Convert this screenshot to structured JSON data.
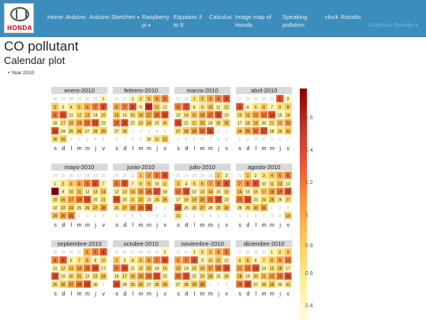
{
  "nav": {
    "logo_text": "HONDA",
    "items": [
      {
        "label": "Home"
      },
      {
        "label": "Arduino"
      },
      {
        "label": "Arduino Sketches",
        "caret": "▾"
      },
      {
        "label": "Raspberry pi",
        "caret": "▾"
      },
      {
        "label": "Equation 3 to 8"
      },
      {
        "label": "Calculus"
      },
      {
        "label": "Image map of Honda"
      },
      {
        "label": "Speaking pollution"
      },
      {
        "label": "clock"
      },
      {
        "label": "Rstudio"
      },
      {
        "label": "Graphics Rstudio",
        "caret": "▾",
        "active": true
      }
    ]
  },
  "page": {
    "title": "CO pollutant",
    "subtitle": "Calendar plot",
    "bullet": "Year 2010"
  },
  "colors": {
    "nav_bg": "#3c8dbc",
    "active": "#5bc0f8",
    "low": "#fefce0",
    "mid": "#f59b42",
    "high": "#8b0000"
  },
  "chart_data": {
    "type": "heatmap",
    "title": "",
    "legend_position": "right",
    "colorbar_ticks": [
      "1.6",
      "1.4",
      "1.2",
      "1",
      "0.8",
      "0.6",
      "0.4"
    ],
    "weekday_labels": [
      "s",
      "d",
      "l",
      "m",
      "m",
      "j",
      "v"
    ],
    "months": [
      {
        "name": "enero-2010",
        "weeks": [
          [
            "26",
            "27",
            "28",
            "29",
            "30",
            "31",
            "1"
          ],
          [
            "2",
            "3",
            "4",
            "5",
            "6",
            "7",
            "8"
          ],
          [
            "9",
            "10",
            "11",
            "12",
            "13",
            "14",
            "15"
          ],
          [
            "16",
            "17",
            "18",
            "19",
            "20",
            "21",
            "22"
          ],
          [
            "23",
            "24",
            "25",
            "26",
            "27",
            "28",
            "29"
          ],
          [
            "30",
            "31",
            "1",
            "2",
            "3",
            "4",
            "5"
          ]
        ]
      },
      {
        "name": "febrero-2010",
        "weeks": [
          [
            "30",
            "31",
            "1",
            "2",
            "3",
            "4",
            "5"
          ],
          [
            "6",
            "7",
            "8",
            "9",
            "10",
            "11",
            "12"
          ],
          [
            "13",
            "14",
            "15",
            "16",
            "17",
            "18",
            "19"
          ],
          [
            "20",
            "21",
            "22",
            "23",
            "24",
            "25",
            "26"
          ],
          [
            "27",
            "28",
            "1",
            "2",
            "3",
            "4",
            "5"
          ],
          [
            "6",
            "7",
            "8",
            "9",
            "10",
            "11",
            "12"
          ]
        ]
      },
      {
        "name": "marzo-2010",
        "weeks": [
          [
            "27",
            "28",
            "1",
            "2",
            "3",
            "4",
            "5"
          ],
          [
            "6",
            "7",
            "8",
            "9",
            "10",
            "11",
            "12"
          ],
          [
            "13",
            "14",
            "15",
            "16",
            "17",
            "18",
            "19"
          ],
          [
            "20",
            "21",
            "22",
            "23",
            "24",
            "25",
            "26"
          ],
          [
            "27",
            "28",
            "29",
            "30",
            "31",
            "1",
            "2"
          ],
          [
            "3",
            "4",
            "5",
            "6",
            "7",
            "8",
            "9"
          ]
        ]
      },
      {
        "name": "abril-2010",
        "weeks": [
          [
            "27",
            "28",
            "29",
            "30",
            "31",
            "1",
            "2"
          ],
          [
            "3",
            "4",
            "5",
            "6",
            "7",
            "8",
            "9"
          ],
          [
            "10",
            "11",
            "12",
            "13",
            "14",
            "15",
            "16"
          ],
          [
            "17",
            "18",
            "19",
            "20",
            "21",
            "22",
            "23"
          ],
          [
            "24",
            "25",
            "26",
            "27",
            "28",
            "29",
            "30"
          ],
          [
            "1",
            "2",
            "3",
            "4",
            "5",
            "6",
            "7"
          ]
        ]
      },
      {
        "name": "mayo-2010",
        "weeks": [
          [
            "24",
            "25",
            "26",
            "27",
            "28",
            "29",
            "30"
          ],
          [
            "1",
            "2",
            "3",
            "4",
            "5",
            "6",
            "7"
          ],
          [
            "8",
            "9",
            "10",
            "11",
            "12",
            "13",
            "14"
          ],
          [
            "15",
            "16",
            "17",
            "18",
            "19",
            "20",
            "21"
          ],
          [
            "22",
            "23",
            "24",
            "25",
            "26",
            "27",
            "28"
          ],
          [
            "29",
            "30",
            "31",
            "1",
            "2",
            "3",
            "4"
          ]
        ]
      },
      {
        "name": "junio-2010",
        "weeks": [
          [
            "29",
            "30",
            "31",
            "1",
            "2",
            "3",
            "4"
          ],
          [
            "5",
            "6",
            "7",
            "8",
            "9",
            "10",
            "11"
          ],
          [
            "12",
            "13",
            "14",
            "15",
            "16",
            "17",
            "18"
          ],
          [
            "19",
            "20",
            "21",
            "22",
            "23",
            "24",
            "25"
          ],
          [
            "26",
            "27",
            "28",
            "29",
            "30",
            "1",
            "2"
          ],
          [
            "3",
            "4",
            "5",
            "6",
            "7",
            "8",
            "9"
          ]
        ]
      },
      {
        "name": "julio-2010",
        "weeks": [
          [
            "26",
            "27",
            "28",
            "29",
            "30",
            "1",
            "2"
          ],
          [
            "3",
            "4",
            "5",
            "6",
            "7",
            "8",
            "9"
          ],
          [
            "10",
            "11",
            "12",
            "13",
            "14",
            "15",
            "16"
          ],
          [
            "17",
            "18",
            "19",
            "20",
            "21",
            "22",
            "23"
          ],
          [
            "24",
            "25",
            "26",
            "27",
            "28",
            "29",
            "30"
          ],
          [
            "31",
            "1",
            "2",
            "3",
            "4",
            "5",
            "6"
          ]
        ]
      },
      {
        "name": "agosto-2010",
        "weeks": [
          [
            "31",
            "1",
            "2",
            "3",
            "4",
            "5",
            "6"
          ],
          [
            "7",
            "8",
            "9",
            "10",
            "11",
            "12",
            "13"
          ],
          [
            "14",
            "15",
            "16",
            "17",
            "18",
            "19",
            "20"
          ],
          [
            "21",
            "22",
            "23",
            "24",
            "25",
            "26",
            "27"
          ],
          [
            "28",
            "29",
            "30",
            "31",
            "1",
            "2",
            "3"
          ],
          [
            "4",
            "5",
            "6",
            "7",
            "8",
            "9",
            "10"
          ]
        ]
      },
      {
        "name": "septiembre-2010",
        "weeks": [
          [
            "28",
            "29",
            "30",
            "31",
            "1",
            "2",
            "3"
          ],
          [
            "4",
            "5",
            "6",
            "7",
            "8",
            "9",
            "10"
          ],
          [
            "11",
            "12",
            "13",
            "14",
            "15",
            "16",
            "17"
          ],
          [
            "18",
            "19",
            "20",
            "21",
            "22",
            "23",
            "24"
          ],
          [
            "25",
            "26",
            "27",
            "28",
            "29",
            "30",
            "1"
          ]
        ]
      },
      {
        "name": "octubre-2010",
        "weeks": [
          [
            "25",
            "26",
            "27",
            "28",
            "29",
            "30",
            "1"
          ],
          [
            "2",
            "3",
            "4",
            "5",
            "6",
            "7",
            "8"
          ],
          [
            "9",
            "10",
            "11",
            "12",
            "13",
            "14",
            "15"
          ],
          [
            "16",
            "17",
            "18",
            "19",
            "20",
            "21",
            "22"
          ],
          [
            "23",
            "24",
            "25",
            "26",
            "27",
            "28",
            "29"
          ]
        ]
      },
      {
        "name": "noviembre-2010",
        "weeks": [
          [
            "30",
            "31",
            "1",
            "2",
            "3",
            "4",
            "5"
          ],
          [
            "6",
            "7",
            "8",
            "9",
            "10",
            "11",
            "12"
          ],
          [
            "13",
            "14",
            "15",
            "16",
            "17",
            "18",
            "19"
          ],
          [
            "20",
            "21",
            "22",
            "23",
            "24",
            "25",
            "26"
          ],
          [
            "27",
            "28",
            "29",
            "30",
            "1",
            "2",
            "3"
          ]
        ]
      },
      {
        "name": "diciembre-2010",
        "weeks": [
          [
            "27",
            "28",
            "29",
            "30",
            "1",
            "2",
            "3"
          ],
          [
            "4",
            "5",
            "6",
            "7",
            "8",
            "9",
            "10"
          ],
          [
            "11",
            "12",
            "13",
            "14",
            "15",
            "16",
            "17"
          ],
          [
            "18",
            "19",
            "20",
            "21",
            "22",
            "23",
            "24"
          ],
          [
            "25",
            "26",
            "27",
            "28",
            "29",
            "30",
            "31"
          ]
        ]
      }
    ]
  }
}
